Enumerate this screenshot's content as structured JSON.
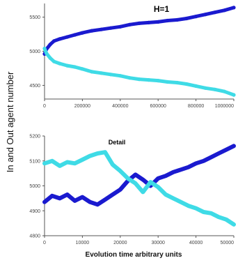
{
  "colors": {
    "in": "#1a1acf",
    "out": "#3fdbe6",
    "axis": "#555555"
  },
  "ylabel": "In and Out agent number",
  "xlabel": "Evolution time arbitrary units",
  "chart_data": [
    {
      "type": "line",
      "title": "H=1",
      "xlim": [
        0,
        1000000
      ],
      "ylim": [
        4300,
        5700
      ],
      "x_ticks": [
        "0",
        "200000",
        "400000",
        "600000",
        "800000",
        "1000000"
      ],
      "y_ticks": [
        "5500",
        "5000",
        "4500"
      ],
      "y_tick_values": [
        5500,
        5000,
        4500
      ],
      "series": [
        {
          "color_key": "in",
          "x": [
            0,
            10000,
            30000,
            50000,
            80000,
            120000,
            160000,
            200000,
            250000,
            300000,
            350000,
            400000,
            450000,
            500000,
            550000,
            600000,
            650000,
            700000,
            750000,
            800000,
            850000,
            900000,
            950000,
            1000000
          ],
          "y": [
            4960,
            5030,
            5100,
            5150,
            5180,
            5210,
            5240,
            5270,
            5300,
            5320,
            5340,
            5360,
            5390,
            5410,
            5420,
            5430,
            5450,
            5460,
            5480,
            5510,
            5540,
            5570,
            5600,
            5640
          ]
        },
        {
          "color_key": "out",
          "x": [
            0,
            10000,
            30000,
            50000,
            80000,
            120000,
            160000,
            200000,
            250000,
            300000,
            350000,
            400000,
            450000,
            500000,
            550000,
            600000,
            650000,
            700000,
            750000,
            800000,
            850000,
            900000,
            950000,
            1000000
          ],
          "y": [
            5040,
            4970,
            4900,
            4850,
            4820,
            4790,
            4770,
            4740,
            4700,
            4680,
            4660,
            4640,
            4610,
            4590,
            4580,
            4570,
            4550,
            4540,
            4520,
            4490,
            4460,
            4440,
            4410,
            4360
          ]
        }
      ]
    },
    {
      "type": "line",
      "title": "Detail",
      "xlim": [
        0,
        50000
      ],
      "ylim": [
        4800,
        5200
      ],
      "x_ticks": [
        "0",
        "10000",
        "20000",
        "30000",
        "40000",
        "50000"
      ],
      "y_ticks": [
        "5200",
        "5100",
        "5000",
        "4900",
        "4800"
      ],
      "y_tick_values": [
        5200,
        5100,
        5000,
        4900,
        4800
      ],
      "series": [
        {
          "color_key": "in",
          "x": [
            0,
            2000,
            4000,
            6000,
            8000,
            10000,
            12000,
            14000,
            16000,
            18000,
            20000,
            22000,
            24000,
            26000,
            28000,
            30000,
            32000,
            34000,
            36000,
            38000,
            40000,
            42000,
            44000,
            46000,
            48000,
            50000
          ],
          "y": [
            4935,
            4960,
            4950,
            4965,
            4940,
            4955,
            4935,
            4925,
            4945,
            4965,
            4985,
            5020,
            5045,
            5025,
            5000,
            5030,
            5040,
            5055,
            5065,
            5075,
            5090,
            5100,
            5115,
            5130,
            5145,
            5160
          ]
        },
        {
          "color_key": "out",
          "x": [
            0,
            2000,
            4000,
            6000,
            8000,
            10000,
            12000,
            14000,
            16000,
            18000,
            20000,
            22000,
            24000,
            26000,
            28000,
            30000,
            32000,
            34000,
            36000,
            38000,
            40000,
            42000,
            44000,
            46000,
            48000,
            50000
          ],
          "y": [
            5090,
            5100,
            5080,
            5095,
            5090,
            5105,
            5120,
            5130,
            5135,
            5085,
            5060,
            5030,
            5010,
            4975,
            5015,
            4995,
            4965,
            4950,
            4935,
            4920,
            4910,
            4895,
            4890,
            4875,
            4865,
            4845
          ]
        }
      ]
    }
  ]
}
